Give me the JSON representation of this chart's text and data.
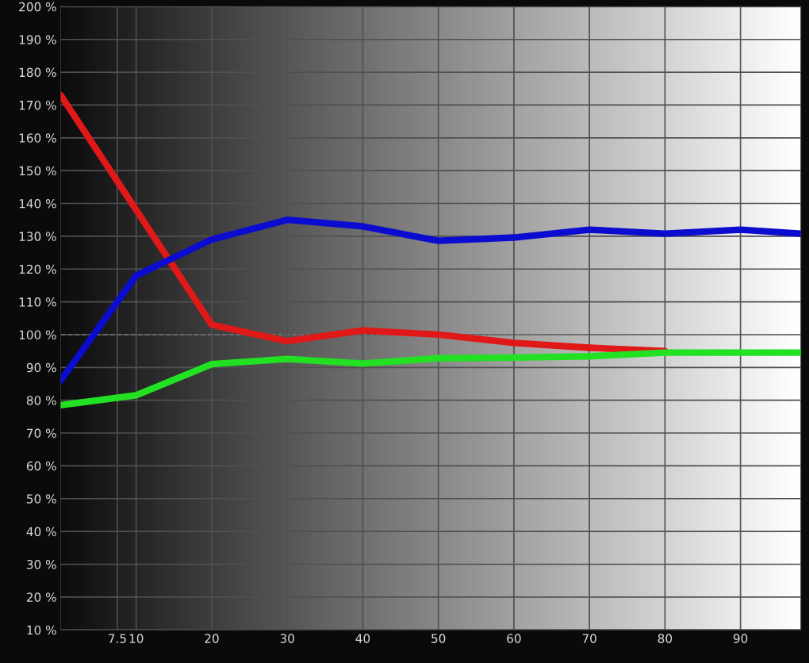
{
  "chart_data": {
    "type": "line",
    "xlim": [
      0,
      98
    ],
    "xticks": [
      7.5,
      10,
      20,
      30,
      40,
      50,
      60,
      70,
      80,
      90
    ],
    "ylim": [
      10,
      200
    ],
    "yticks": [
      {
        "value": 10,
        "label": "10 %"
      },
      {
        "value": 20,
        "label": "20 %"
      },
      {
        "value": 30,
        "label": "30 %"
      },
      {
        "value": 40,
        "label": "40 %"
      },
      {
        "value": 50,
        "label": "50 %"
      },
      {
        "value": 60,
        "label": "60 %"
      },
      {
        "value": 70,
        "label": "70 %"
      },
      {
        "value": 80,
        "label": "80 %"
      },
      {
        "value": 90,
        "label": "90 %"
      },
      {
        "value": 100,
        "label": "100 %"
      },
      {
        "value": 110,
        "label": "110 %"
      },
      {
        "value": 120,
        "label": "120 %"
      },
      {
        "value": 130,
        "label": "130 %"
      },
      {
        "value": 140,
        "label": "140 %"
      },
      {
        "value": 150,
        "label": "150 %"
      },
      {
        "value": 160,
        "label": "160 %"
      },
      {
        "value": 170,
        "label": "170 %"
      },
      {
        "value": 180,
        "label": "180 %"
      },
      {
        "value": 190,
        "label": "190 %"
      },
      {
        "value": 200,
        "label": "200 %"
      }
    ],
    "grid": true,
    "marker": "none",
    "line_style": "solid",
    "ref_lines": [
      {
        "axis": "y",
        "value": 100,
        "color": "#e0e0e0",
        "line_style": "dashed"
      }
    ],
    "series": [
      {
        "color": "#e01818",
        "x": [
          0,
          10,
          20,
          30,
          40,
          50,
          60,
          70,
          80
        ],
        "values": [
          173,
          138,
          103,
          98,
          101.3,
          100,
          97.5,
          96,
          95
        ]
      },
      {
        "color": "#0c0cd0",
        "x": [
          0,
          10,
          20,
          30,
          40,
          50,
          60,
          70,
          80,
          90,
          98
        ],
        "values": [
          86,
          118,
          129,
          135,
          133,
          128.6,
          129.6,
          132,
          130.8,
          132,
          130.8
        ]
      },
      {
        "color": "#22e022",
        "x": [
          0,
          10,
          20,
          30,
          40,
          50,
          60,
          70,
          80,
          90,
          98
        ],
        "values": [
          78.5,
          81.5,
          91,
          92.6,
          91.2,
          92.8,
          93,
          93.4,
          94.5,
          94.5,
          94.5
        ]
      }
    ]
  }
}
